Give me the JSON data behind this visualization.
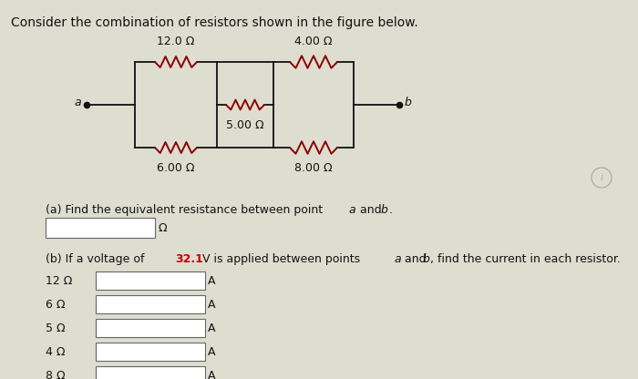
{
  "title": "Consider the combination of resistors shown in the figure below.",
  "bg_color": "#deded0",
  "resistors": {
    "R12": "12.0 Ω",
    "R6": "6.00 Ω",
    "R5": "5.00 Ω",
    "R4": "4.00 Ω",
    "R8": "8.00 Ω"
  },
  "wire_color": "#8B0000",
  "line_color": "#111111",
  "text_color": "#111111",
  "red_color": "#cc0000",
  "omega_label": "Ω",
  "amp_label": "A",
  "input_rows": [
    "12 Ω",
    "6 Ω",
    "5 Ω",
    "4 Ω",
    "8 Ω"
  ]
}
